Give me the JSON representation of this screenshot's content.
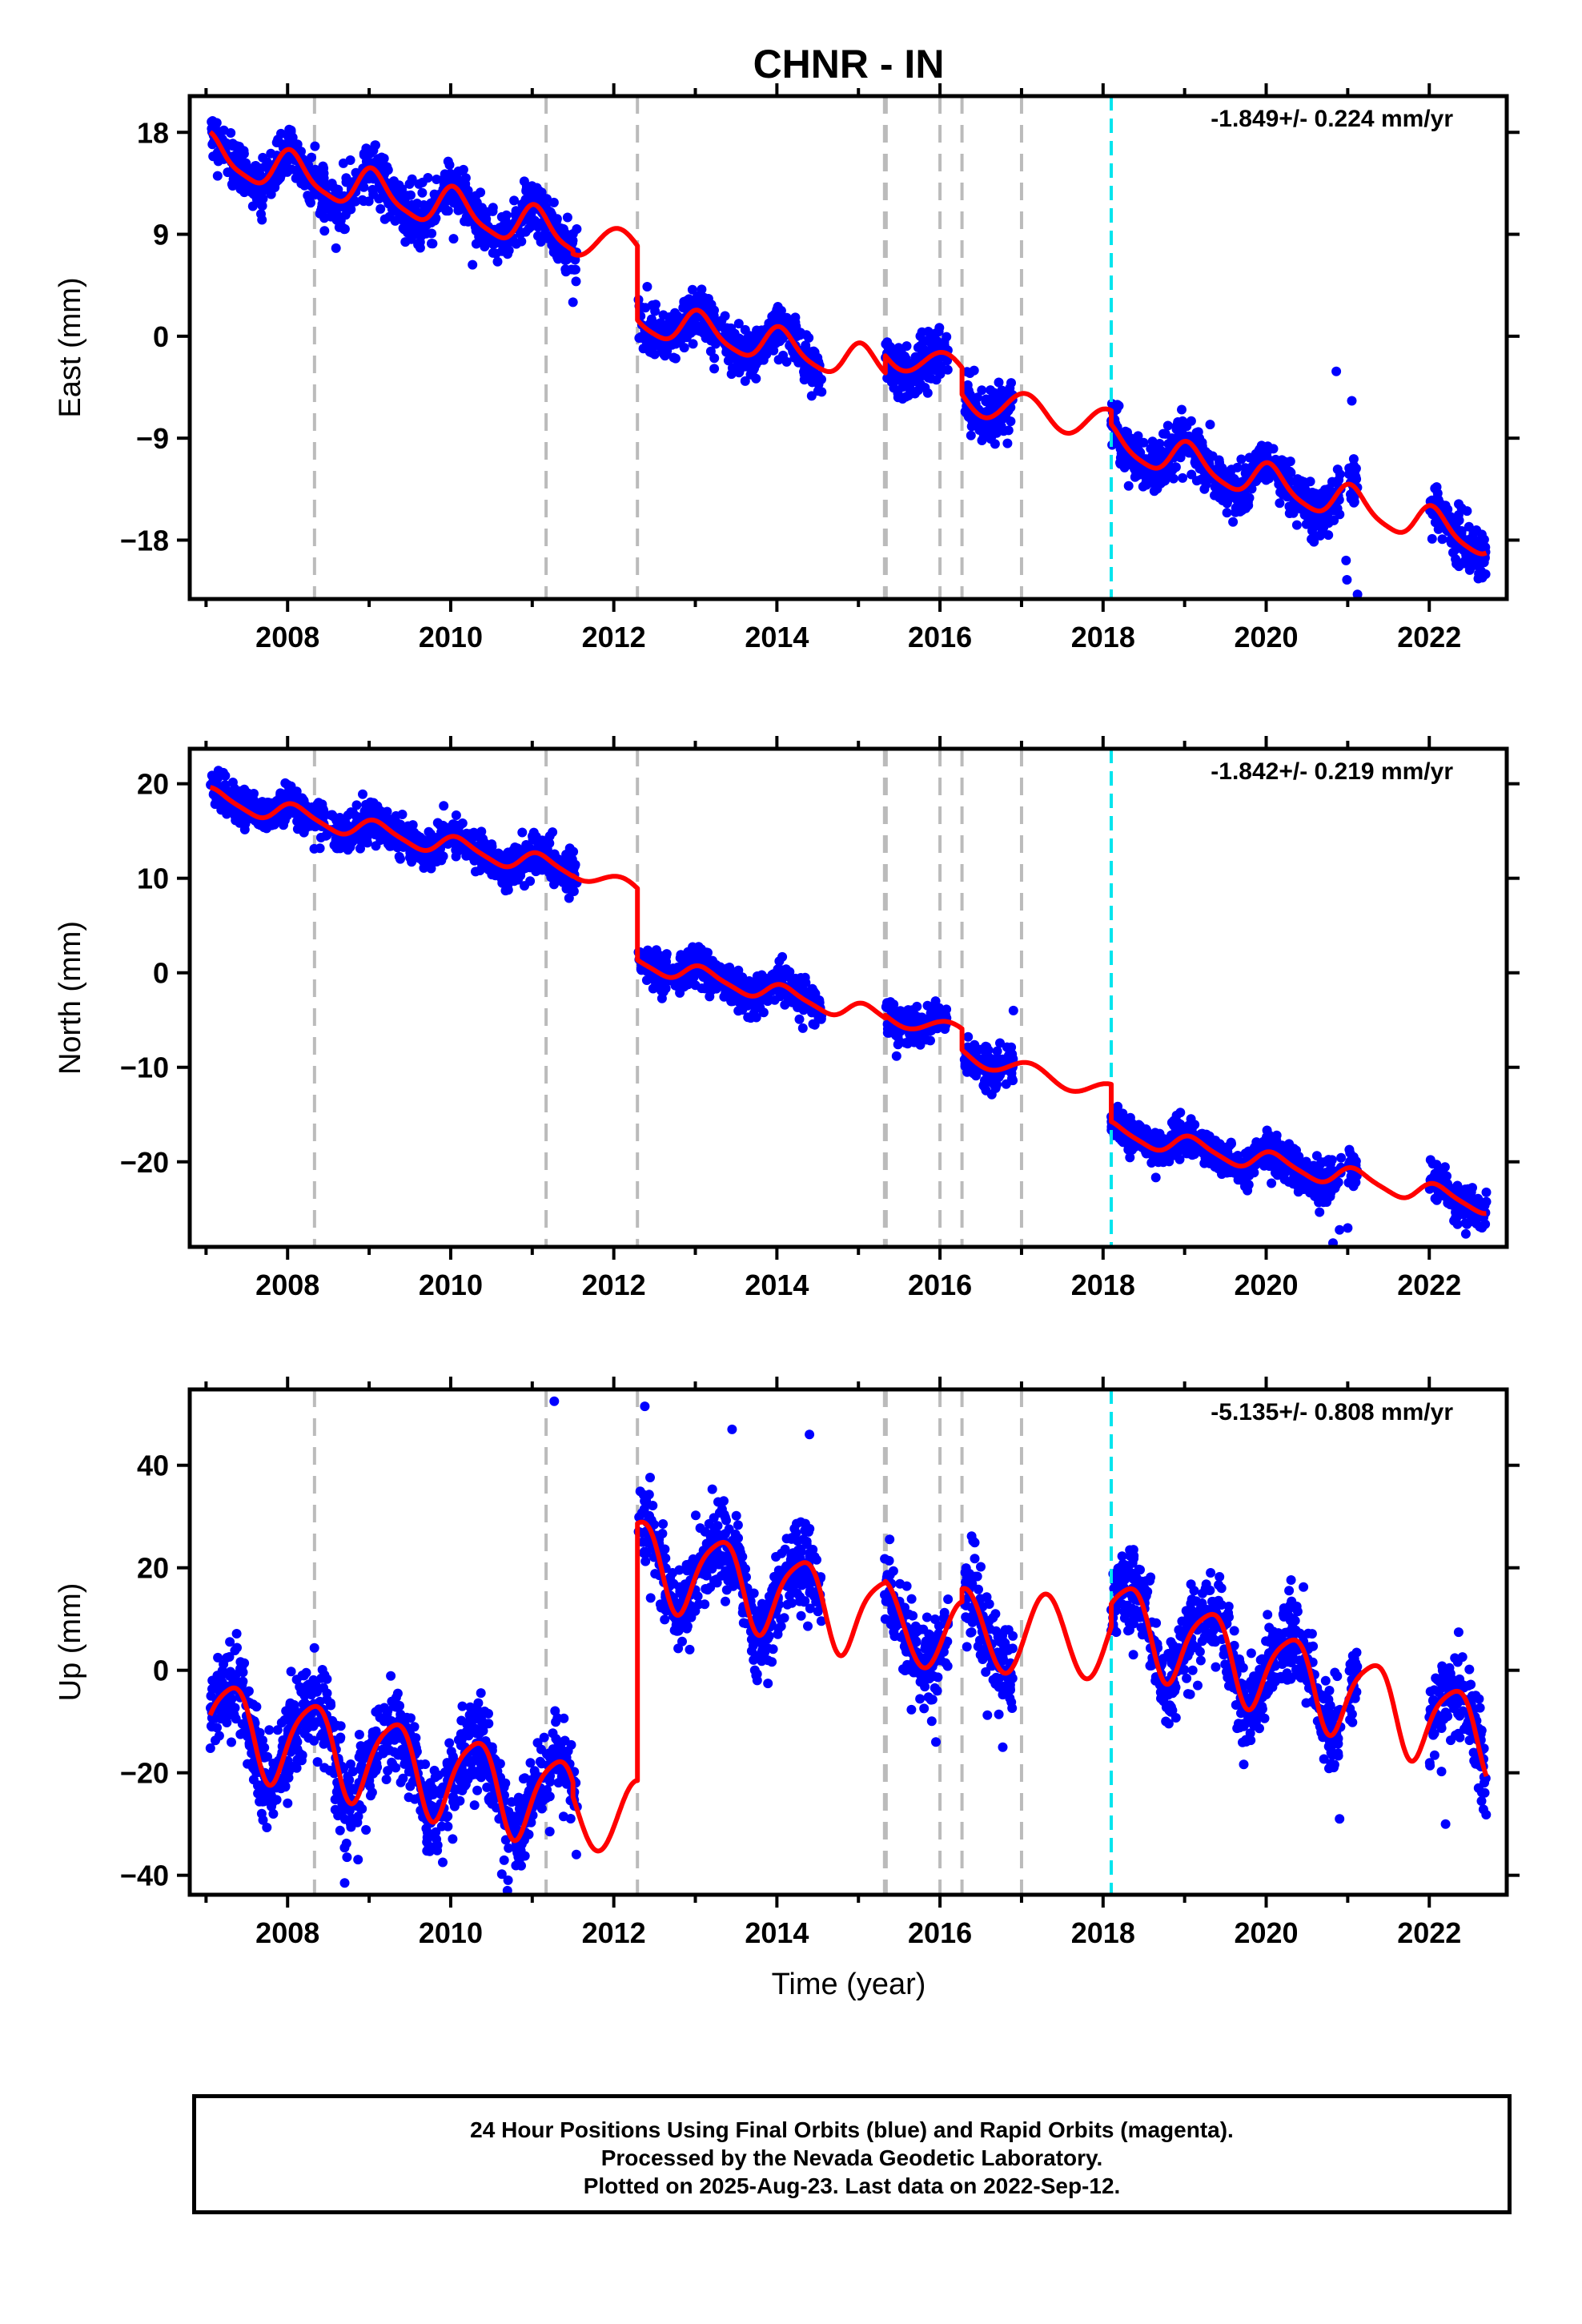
{
  "title": "CHNR - IN",
  "xlabel": "Time (year)",
  "footer": {
    "line1": "24 Hour Positions Using Final Orbits (blue) and Rapid Orbits (magenta).",
    "line2": "Processed by the Nevada Geodetic Laboratory.",
    "line3": "Plotted on 2025-Aug-23. Last data on 2022-Sep-12."
  },
  "colors": {
    "data": "#0000ff",
    "model": "#ff0000",
    "event_line": "#bbbbbb",
    "antenna_line": "#00e5ee"
  },
  "events": [
    2008.33,
    2011.17,
    2012.29,
    2015.32,
    2015.34,
    2016.0,
    2016.27,
    2017.0
  ],
  "antenna_change": 2018.1,
  "chart_data": [
    {
      "type": "scatter",
      "title": "CHNR - IN",
      "ylabel": "East (mm)",
      "rate_text": "-1.849+/- 0.224 mm/yr",
      "xlim": [
        2006.8,
        2022.95
      ],
      "ylim": [
        -23.2,
        21.2
      ],
      "yticks": [
        18,
        9,
        0,
        -9,
        -18
      ],
      "ytick_labels": [
        "18",
        "9",
        "0",
        "−9",
        "−18"
      ],
      "xticks": [
        2008,
        2010,
        2012,
        2014,
        2016,
        2018,
        2020,
        2022
      ],
      "data_segments": [
        [
          2007.05,
          2011.55
        ],
        [
          2012.3,
          2014.55
        ],
        [
          2015.32,
          2016.1
        ],
        [
          2016.3,
          2016.9
        ],
        [
          2018.1,
          2020.92
        ],
        [
          2021.0,
          2021.12
        ],
        [
          2022.0,
          2022.7
        ]
      ],
      "model_pieces": [
        {
          "t0": 2007.05,
          "t1": 2011.5,
          "trend": [
            2007.05,
            16.0,
            2011.5,
            8.8
          ],
          "annual": [
            -1.7,
            0.55
          ],
          "semi": [
            0.4,
            0.5
          ]
        },
        {
          "t0": 2011.5,
          "t1": 2012.29,
          "trend": [
            2011.5,
            8.6,
            2012.29,
            7.9
          ],
          "annual": [
            -1.4,
            0.55
          ],
          "semi": [
            0.0,
            0.0
          ]
        },
        {
          "t0": 2012.29,
          "t1": 2015.33,
          "trend": [
            2012.29,
            1.6,
            2015.33,
            -2.8
          ],
          "annual": [
            -1.5,
            0.55
          ],
          "semi": [
            0.3,
            0.5
          ]
        },
        {
          "t0": 2015.33,
          "t1": 2016.27,
          "trend": [
            2015.33,
            -1.5,
            2016.27,
            -3.0
          ],
          "annual": [
            -1.2,
            0.55
          ],
          "semi": [
            0.0,
            0.0
          ]
        },
        {
          "t0": 2016.27,
          "t1": 2018.1,
          "trend": [
            2016.27,
            -5.4,
            2018.1,
            -7.9
          ],
          "annual": [
            -1.4,
            0.55
          ],
          "semi": [
            0.0,
            0.0
          ]
        },
        {
          "t0": 2018.1,
          "t1": 2022.7,
          "trend": [
            2018.1,
            -9.3,
            2022.7,
            -18.0
          ],
          "annual": [
            -1.5,
            0.55
          ],
          "semi": [
            0.3,
            0.5
          ]
        }
      ],
      "noise": 1.1,
      "outliers": [
        [
          2020.98,
          -19.8
        ],
        [
          2020.99,
          -21.5
        ],
        [
          2021.1,
          -24.3
        ],
        [
          2021.12,
          -22.8
        ],
        [
          2020.86,
          -3.1
        ],
        [
          2021.05,
          -5.7
        ],
        [
          2011.5,
          3.0
        ]
      ]
    },
    {
      "type": "scatter",
      "ylabel": "North (mm)",
      "rate_text": "-1.842+/- 0.219 mm/yr",
      "xlim": [
        2006.8,
        2022.95
      ],
      "ylim": [
        -29.0,
        23.7
      ],
      "yticks": [
        20,
        10,
        0,
        -10,
        -20
      ],
      "ytick_labels": [
        "20",
        "10",
        "0",
        "−10",
        "−20"
      ],
      "xticks": [
        2008,
        2010,
        2012,
        2014,
        2016,
        2018,
        2020,
        2022
      ],
      "data_segments": [
        [
          2007.05,
          2011.55
        ],
        [
          2012.3,
          2014.55
        ],
        [
          2015.32,
          2016.1
        ],
        [
          2016.3,
          2016.9
        ],
        [
          2018.1,
          2020.92
        ],
        [
          2021.0,
          2021.12
        ],
        [
          2022.0,
          2022.7
        ]
      ],
      "model_pieces": [
        {
          "t0": 2007.05,
          "t1": 2011.5,
          "trend": [
            2007.05,
            18.5,
            2011.5,
            10.8
          ],
          "annual": [
            -1.0,
            0.6
          ],
          "semi": [
            0.2,
            0.5
          ]
        },
        {
          "t0": 2011.5,
          "t1": 2012.29,
          "trend": [
            2011.5,
            11.0,
            2012.29,
            8.6
          ],
          "annual": [
            -0.9,
            0.6
          ],
          "semi": [
            0.0,
            0.0
          ]
        },
        {
          "t0": 2012.29,
          "t1": 2015.33,
          "trend": [
            2012.29,
            1.2,
            2015.33,
            -4.8
          ],
          "annual": [
            -0.9,
            0.6
          ],
          "semi": [
            0.2,
            0.5
          ]
        },
        {
          "t0": 2015.33,
          "t1": 2016.27,
          "trend": [
            2015.33,
            -4.6,
            2016.27,
            -6.3
          ],
          "annual": [
            -0.8,
            0.6
          ],
          "semi": [
            0.0,
            0.0
          ]
        },
        {
          "t0": 2016.27,
          "t1": 2018.1,
          "trend": [
            2016.27,
            -8.6,
            2018.1,
            -12.7
          ],
          "annual": [
            -0.9,
            0.6
          ],
          "semi": [
            0.0,
            0.0
          ]
        },
        {
          "t0": 2018.1,
          "t1": 2022.7,
          "trend": [
            2018.1,
            -16.8,
            2022.7,
            -24.5
          ],
          "annual": [
            -1.0,
            0.6
          ],
          "semi": [
            0.2,
            0.5
          ]
        }
      ],
      "noise": 1.0,
      "outliers": [
        [
          2020.82,
          -28.6
        ],
        [
          2020.9,
          -27.2
        ],
        [
          2021.0,
          -27.0
        ],
        [
          2016.9,
          -4.0
        ]
      ]
    },
    {
      "type": "scatter",
      "ylabel": "Up (mm)",
      "rate_text": "-5.135+/- 0.808 mm/yr",
      "xlim": [
        2006.8,
        2022.95
      ],
      "ylim": [
        -43.8,
        54.8
      ],
      "yticks": [
        40,
        20,
        0,
        -20,
        -40
      ],
      "ytick_labels": [
        "40",
        "20",
        "0",
        "−20",
        "−40"
      ],
      "xticks": [
        2008,
        2010,
        2012,
        2014,
        2016,
        2018,
        2020,
        2022
      ],
      "data_segments": [
        [
          2007.05,
          2011.55
        ],
        [
          2012.3,
          2014.55
        ],
        [
          2015.32,
          2016.1
        ],
        [
          2016.3,
          2016.9
        ],
        [
          2018.1,
          2020.92
        ],
        [
          2021.0,
          2021.12
        ],
        [
          2022.0,
          2022.7
        ]
      ],
      "model_pieces": [
        {
          "t0": 2007.05,
          "t1": 2011.5,
          "trend": [
            2007.05,
            -10.0,
            2011.5,
            -26.0
          ],
          "annual": [
            8.5,
            0.3
          ],
          "semi": [
            1.5,
            0.5
          ]
        },
        {
          "t0": 2011.5,
          "t1": 2012.29,
          "trend": [
            2011.5,
            -27.0,
            2012.29,
            -29.0
          ],
          "annual": [
            7.5,
            0.3
          ],
          "semi": [
            0.0,
            0.0
          ]
        },
        {
          "t0": 2012.29,
          "t1": 2015.33,
          "trend": [
            2012.29,
            22.0,
            2015.33,
            10.0
          ],
          "annual": [
            8.0,
            0.3
          ],
          "semi": [
            1.5,
            0.5
          ]
        },
        {
          "t0": 2015.33,
          "t1": 2016.27,
          "trend": [
            2015.33,
            10.0,
            2016.27,
            6.0
          ],
          "annual": [
            7.5,
            0.3
          ],
          "semi": [
            0.0,
            0.0
          ]
        },
        {
          "t0": 2016.27,
          "t1": 2018.1,
          "trend": [
            2016.27,
            8.0,
            2018.1,
            6.0
          ],
          "annual": [
            8.0,
            0.3
          ],
          "semi": [
            0.0,
            0.0
          ]
        },
        {
          "t0": 2018.1,
          "t1": 2022.7,
          "trend": [
            2018.1,
            10.0,
            2022.7,
            -13.0
          ],
          "annual": [
            8.0,
            0.3
          ],
          "semi": [
            1.5,
            0.5
          ]
        }
      ],
      "noise": 4.2,
      "outliers": [
        [
          2011.27,
          52.5
        ],
        [
          2012.38,
          51.5
        ],
        [
          2013.45,
          47.0
        ],
        [
          2014.4,
          46.0
        ],
        [
          2008.7,
          -41.5
        ],
        [
          2016.77,
          -15.0
        ],
        [
          2015.95,
          -14.0
        ],
        [
          2020.9,
          -29.0
        ],
        [
          2022.2,
          -30.0
        ]
      ]
    }
  ]
}
